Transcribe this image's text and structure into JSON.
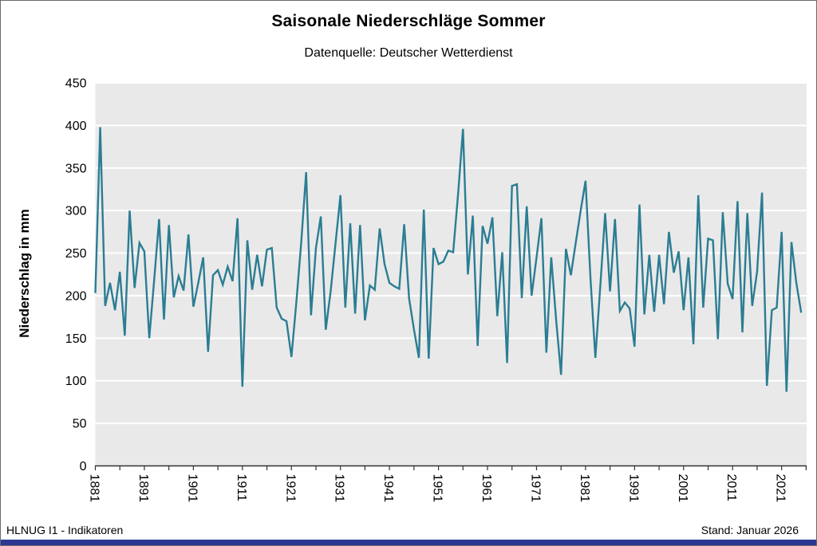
{
  "chart": {
    "title": "Saisonale Niederschläge Sommer",
    "subtitle": "Datenquelle: Deutscher Wetterdienst",
    "ylabel": "Niederschlag in mm",
    "footer_left": "HLNUG I1 - Indikatoren",
    "footer_right": "Stand: Januar 2026",
    "colors": {
      "line": "#2b7d93",
      "plot_bg": "#e9e9e9",
      "grid": "#ffffff",
      "axis": "#333333",
      "tick": "#333333",
      "text": "#000000",
      "bottom_bar": "#2c3792"
    }
  },
  "chart_data": {
    "type": "line",
    "title": "Saisonale Niederschläge Sommer",
    "subtitle": "Datenquelle: Deutscher Wetterdienst",
    "xlabel": "",
    "ylabel": "Niederschlag in mm",
    "ylim": [
      0,
      450
    ],
    "ytick_step": 50,
    "grid": true,
    "legend_position": "none",
    "x_major_ticks": [
      1881,
      1891,
      1901,
      1911,
      1921,
      1931,
      1941,
      1951,
      1961,
      1971,
      1981,
      1991,
      2001,
      2011,
      2021
    ],
    "x_minor_tick_step": 5,
    "x": [
      1881,
      1882,
      1883,
      1884,
      1885,
      1886,
      1887,
      1888,
      1889,
      1890,
      1891,
      1892,
      1893,
      1894,
      1895,
      1896,
      1897,
      1898,
      1899,
      1900,
      1901,
      1902,
      1903,
      1904,
      1905,
      1906,
      1907,
      1908,
      1909,
      1910,
      1911,
      1912,
      1913,
      1914,
      1915,
      1916,
      1917,
      1918,
      1919,
      1920,
      1921,
      1922,
      1923,
      1924,
      1925,
      1926,
      1927,
      1928,
      1929,
      1930,
      1931,
      1932,
      1933,
      1934,
      1935,
      1936,
      1937,
      1938,
      1939,
      1940,
      1941,
      1942,
      1943,
      1944,
      1945,
      1946,
      1947,
      1948,
      1949,
      1950,
      1951,
      1952,
      1953,
      1954,
      1955,
      1956,
      1957,
      1958,
      1959,
      1960,
      1961,
      1962,
      1963,
      1964,
      1965,
      1966,
      1967,
      1968,
      1969,
      1970,
      1971,
      1972,
      1973,
      1974,
      1975,
      1976,
      1977,
      1978,
      1979,
      1980,
      1981,
      1982,
      1983,
      1984,
      1985,
      1986,
      1987,
      1988,
      1989,
      1990,
      1991,
      1992,
      1993,
      1994,
      1995,
      1996,
      1997,
      1998,
      1999,
      2000,
      2001,
      2002,
      2003,
      2004,
      2005,
      2006,
      2007,
      2008,
      2009,
      2010,
      2011,
      2012,
      2013,
      2014,
      2015,
      2016,
      2017,
      2018,
      2019,
      2020,
      2021,
      2022,
      2023,
      2024,
      2025
    ],
    "values": [
      203,
      398,
      188,
      215,
      183,
      228,
      153,
      300,
      209,
      262,
      252,
      150,
      218,
      290,
      172,
      283,
      198,
      223,
      206,
      272,
      187,
      215,
      245,
      134,
      224,
      230,
      213,
      234,
      217,
      291,
      93,
      265,
      207,
      248,
      211,
      254,
      256,
      186,
      173,
      170,
      128,
      192,
      262,
      345,
      177,
      256,
      293,
      160,
      205,
      262,
      318,
      186,
      285,
      179,
      283,
      171,
      212,
      207,
      279,
      237,
      215,
      211,
      208,
      284,
      197,
      160,
      127,
      301,
      126,
      256,
      237,
      240,
      253,
      251,
      320,
      396,
      225,
      294,
      141,
      282,
      261,
      292,
      176,
      251,
      121,
      329,
      331,
      197,
      305,
      200,
      245,
      291,
      133,
      245,
      172,
      107,
      255,
      224,
      262,
      300,
      335,
      222,
      127,
      210,
      297,
      205,
      290,
      182,
      192,
      185,
      140,
      307,
      178,
      248,
      181,
      248,
      190,
      275,
      227,
      252,
      183,
      245,
      143,
      318,
      186,
      267,
      265,
      149,
      298,
      214,
      196,
      311,
      157,
      297,
      188,
      228,
      321,
      94,
      183,
      186,
      275,
      87,
      263,
      215,
      180
    ]
  }
}
